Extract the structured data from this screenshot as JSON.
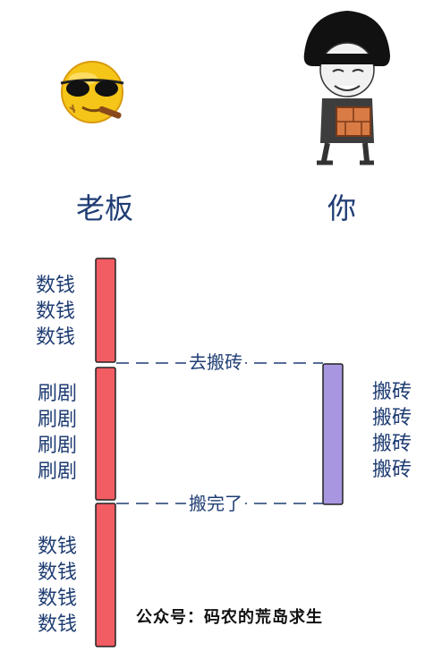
{
  "actors": {
    "boss": {
      "name": "老板",
      "avatar": "sunglasses-cigar-emoji-icon"
    },
    "you": {
      "name": "你",
      "avatar": "meme-guy-carrying-bricks-icon"
    }
  },
  "boss_bars": [
    {
      "color": "#f25c63",
      "activity": [
        "数钱",
        "数钱",
        "数钱"
      ]
    },
    {
      "color": "#f25c63",
      "activity": [
        "刷剧",
        "刷剧",
        "刷剧",
        "刷剧"
      ]
    },
    {
      "color": "#f25c63",
      "activity": [
        "数钱",
        "数钱",
        "数钱",
        "数钱"
      ]
    }
  ],
  "you_bar": {
    "color": "#a996e0",
    "activity": [
      "搬砖",
      "搬砖",
      "搬砖",
      "搬砖"
    ]
  },
  "messages": [
    {
      "from": "老板",
      "to": "你",
      "text": "去搬砖"
    },
    {
      "from": "你",
      "to": "老板",
      "text": "搬完了"
    }
  ],
  "footer": "公众号：码农的荒岛求生"
}
